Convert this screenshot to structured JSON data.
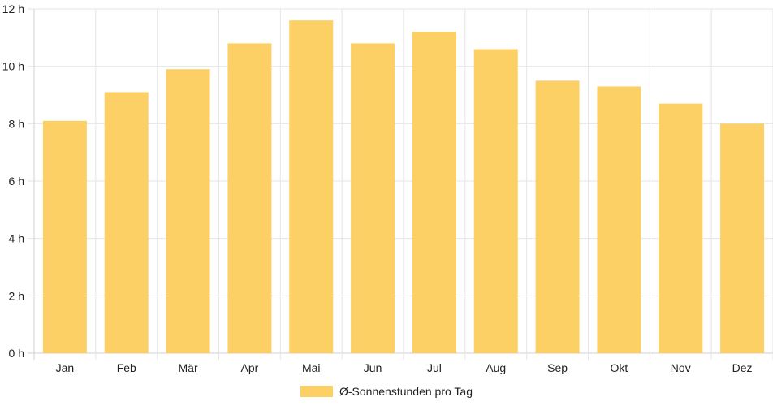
{
  "chart_data": {
    "type": "bar",
    "categories": [
      "Jan",
      "Feb",
      "Mär",
      "Apr",
      "Mai",
      "Jun",
      "Jul",
      "Aug",
      "Sep",
      "Okt",
      "Nov",
      "Dez"
    ],
    "series": [
      {
        "name": "Ø-Sonnenstunden pro Tag",
        "values": [
          8.1,
          9.1,
          9.9,
          10.8,
          11.6,
          10.8,
          11.2,
          10.6,
          9.5,
          9.3,
          8.7,
          8.0
        ]
      }
    ],
    "ylim": [
      0,
      12
    ],
    "yticks": [
      "0 h",
      "2 h",
      "4 h",
      "6 h",
      "8 h",
      "10 h",
      "12 h"
    ],
    "grid": true,
    "legend_position": "bottom",
    "colors": {
      "bar": "#fdd066",
      "grid": "#e6e6e6",
      "axis": "#d0d0d0"
    }
  }
}
